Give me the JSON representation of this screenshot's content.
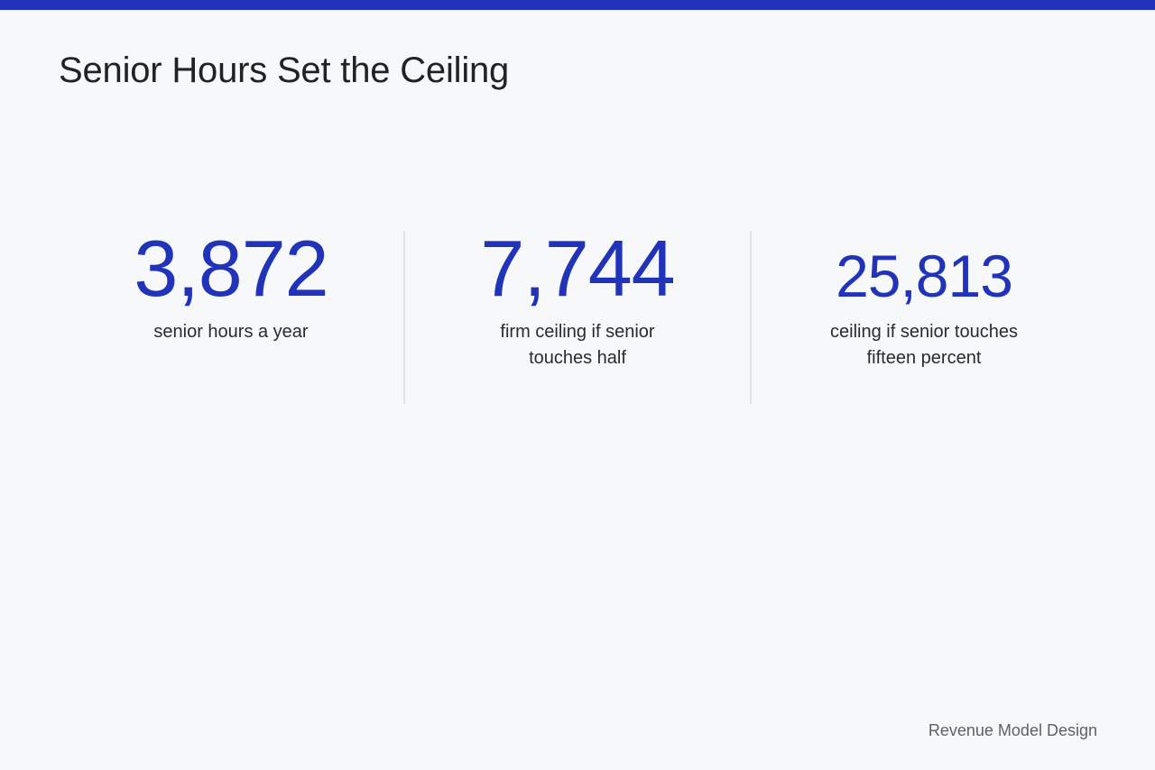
{
  "header": {
    "accent_color": "#2133b8",
    "title": "Senior Hours Set the Ceiling"
  },
  "stats": [
    {
      "value": "3,872",
      "label": "senior hours a year"
    },
    {
      "value": "7,744",
      "label": "firm ceiling if senior touches half"
    },
    {
      "value": "25,813",
      "label": "ceiling if senior touches fifteen percent"
    }
  ],
  "footer": {
    "text": "Revenue Model Design"
  }
}
